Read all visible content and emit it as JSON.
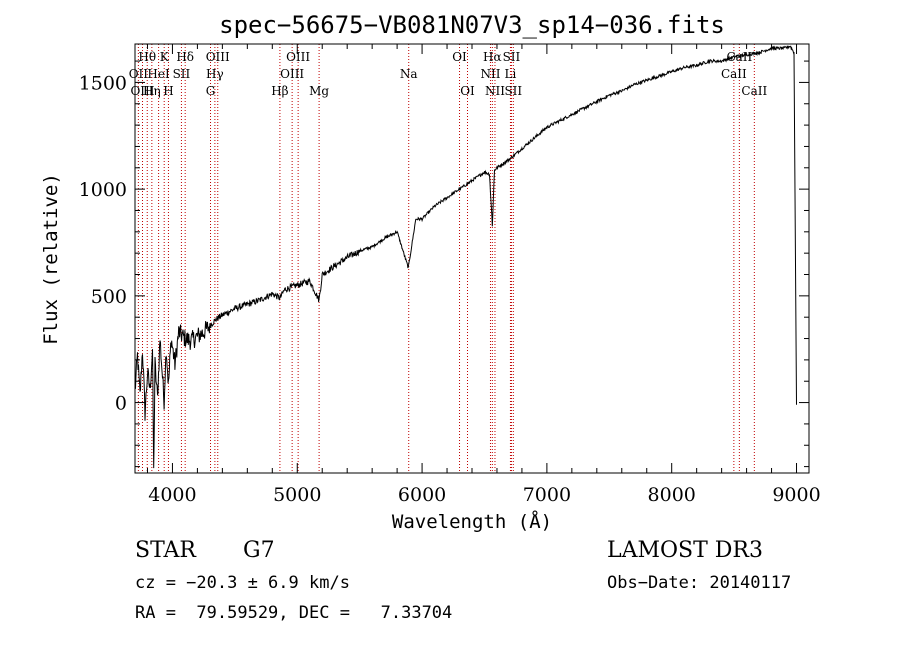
{
  "chart_data": {
    "type": "line",
    "title": "spec−56675−VB081N07V3_sp14−036.fits",
    "xlabel": "Wavelength (Å)",
    "ylabel": "Flux (relative)",
    "xlim": [
      3700,
      9100
    ],
    "ylim": [
      -330,
      1680
    ],
    "x_ticks": [
      4000,
      5000,
      6000,
      7000,
      8000,
      9000
    ],
    "y_ticks": [
      0,
      500,
      1000,
      1500
    ],
    "series": [
      {
        "name": "flux",
        "x": [
          3700,
          3720,
          3740,
          3760,
          3780,
          3800,
          3820,
          3840,
          3850,
          3860,
          3880,
          3900,
          3920,
          3933,
          3950,
          3968,
          3990,
          4020,
          4050,
          4100,
          4150,
          4200,
          4250,
          4300,
          4350,
          4400,
          4500,
          4600,
          4700,
          4800,
          4861,
          4900,
          5000,
          5100,
          5175,
          5200,
          5300,
          5400,
          5500,
          5600,
          5700,
          5800,
          5890,
          5950,
          6000,
          6100,
          6200,
          6300,
          6400,
          6500,
          6540,
          6563,
          6580,
          6600,
          6700,
          6800,
          6900,
          7000,
          7100,
          7200,
          7300,
          7400,
          7500,
          7600,
          7700,
          7800,
          7900,
          8000,
          8100,
          8200,
          8300,
          8400,
          8500,
          8600,
          8700,
          8800,
          8850,
          8900,
          8950,
          8980,
          9000
        ],
        "y": [
          50,
          220,
          30,
          250,
          -50,
          140,
          60,
          250,
          -330,
          180,
          20,
          300,
          120,
          10,
          260,
          80,
          300,
          180,
          330,
          300,
          290,
          310,
          330,
          360,
          390,
          410,
          440,
          460,
          480,
          510,
          490,
          530,
          550,
          570,
          480,
          600,
          640,
          680,
          710,
          730,
          770,
          800,
          630,
          860,
          860,
          920,
          960,
          1000,
          1040,
          1080,
          1070,
          830,
          1090,
          1100,
          1140,
          1190,
          1240,
          1290,
          1320,
          1350,
          1380,
          1410,
          1440,
          1460,
          1490,
          1510,
          1530,
          1550,
          1570,
          1580,
          1600,
          1600,
          1620,
          1630,
          1640,
          1660,
          1660,
          1660,
          1670,
          1640,
          -10
        ]
      }
    ],
    "spectral_lines": [
      {
        "label": "Hθ",
        "x": 3798,
        "row": 0
      },
      {
        "label": "OII",
        "x": 3727,
        "row": 1
      },
      {
        "label": "OIII",
        "x": 3760,
        "row": 2
      },
      {
        "label": "K",
        "x": 3934,
        "row": 0
      },
      {
        "label": "HeI",
        "x": 3889,
        "row": 1
      },
      {
        "label": "Hη",
        "x": 3835,
        "row": 2
      },
      {
        "label": "H",
        "x": 3968,
        "row": 2
      },
      {
        "label": "Hδ",
        "x": 4102,
        "row": 0
      },
      {
        "label": "SII",
        "x": 4072,
        "row": 1
      },
      {
        "label": "OIII",
        "x": 4363,
        "row": 0
      },
      {
        "label": "Hγ",
        "x": 4340,
        "row": 1
      },
      {
        "label": "G",
        "x": 4305,
        "row": 2
      },
      {
        "label": "Hβ",
        "x": 4861,
        "row": 2
      },
      {
        "label": "OIII",
        "x": 5007,
        "row": 0
      },
      {
        "label": "OIII",
        "x": 4959,
        "row": 1
      },
      {
        "label": "Mg",
        "x": 5175,
        "row": 2
      },
      {
        "label": "Na",
        "x": 5893,
        "row": 1
      },
      {
        "label": "OI",
        "x": 6300,
        "row": 0
      },
      {
        "label": "OI",
        "x": 6364,
        "row": 2
      },
      {
        "label": "Hα",
        "x": 6563,
        "row": 0
      },
      {
        "label": "SII",
        "x": 6716,
        "row": 0
      },
      {
        "label": "NII",
        "x": 6548,
        "row": 1
      },
      {
        "label": "Li",
        "x": 6708,
        "row": 1
      },
      {
        "label": "NII",
        "x": 6584,
        "row": 2
      },
      {
        "label": "SII",
        "x": 6731,
        "row": 2
      },
      {
        "label": "CaII",
        "x": 8542,
        "row": 0
      },
      {
        "label": "CaII",
        "x": 8498,
        "row": 1
      },
      {
        "label": "CaII",
        "x": 8662,
        "row": 2
      }
    ]
  },
  "info": {
    "object_type": "STAR",
    "subclass": "G7",
    "survey": "LAMOST DR3",
    "cz": "cz = −20.3 ± 6.9 km/s",
    "obs_date": "Obs−Date: 20140117",
    "coords": "RA =  79.59529, DEC =   7.33704"
  }
}
